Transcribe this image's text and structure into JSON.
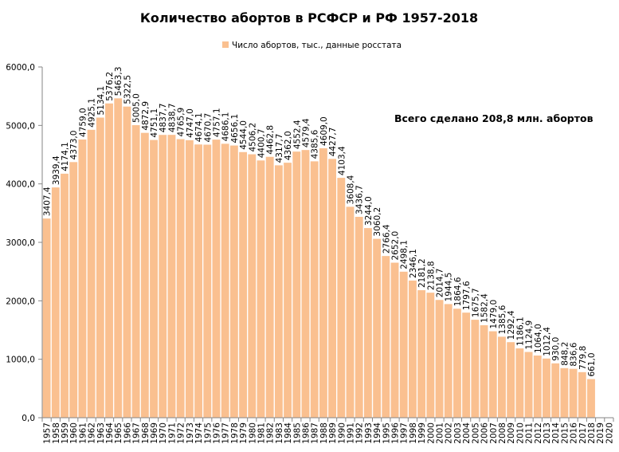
{
  "chart_data": {
    "type": "bar",
    "title": "Количество абортов  в РСФСР  и РФ 1957-2018",
    "legend": {
      "label": "Число абортов, тыс., данные росстата",
      "placement": "top"
    },
    "annotation": "Всего сделано 208,8 млн.  абортов",
    "bar_color": "#FAC090",
    "xlabel": "",
    "ylabel": "",
    "ylim": [
      0,
      6000
    ],
    "y_ticks": [
      "0,0",
      "1000,0",
      "2000,0",
      "3000,0",
      "4000,0",
      "5000,0",
      "6000,0"
    ],
    "categories": [
      "1957",
      "1958",
      "1959",
      "1960",
      "1961",
      "1962",
      "1963",
      "1964",
      "1965",
      "1966",
      "1967",
      "1968",
      "1969",
      "1970",
      "1971",
      "1972",
      "1973",
      "1974",
      "1975",
      "1976",
      "1977",
      "1978",
      "1979",
      "1980",
      "1981",
      "1982",
      "1983",
      "1984",
      "1985",
      "1986",
      "1987",
      "1988",
      "1989",
      "1990",
      "1991",
      "1992",
      "1993",
      "1994",
      "1995",
      "1996",
      "1997",
      "1998",
      "1999",
      "2000",
      "2001",
      "2002",
      "2003",
      "2004",
      "2005",
      "2006",
      "2007",
      "2008",
      "2009",
      "2010",
      "2011",
      "2012",
      "2013",
      "2014",
      "2015",
      "2016",
      "2017",
      "2018",
      "2019",
      "2020"
    ],
    "values": [
      3407.4,
      3939.4,
      4174.1,
      4373.0,
      4759.0,
      4925.1,
      5134.1,
      5376.2,
      5463.3,
      5322.5,
      5005.0,
      4872.9,
      4751.1,
      4837.7,
      4838.7,
      4765.9,
      4747.0,
      4674.1,
      4670.7,
      4757.1,
      4686.1,
      4656.1,
      4544.0,
      4506.2,
      4400.7,
      4462.8,
      4317.7,
      4362.0,
      4552.4,
      4579.4,
      4385.6,
      4609.0,
      4427.7,
      4103.4,
      3608.4,
      3436.7,
      3244.0,
      3060.2,
      2766.4,
      2652.0,
      2498.1,
      2346.1,
      2181.2,
      2138.8,
      2014.7,
      1944.5,
      1864.6,
      1797.6,
      1675.7,
      1582.4,
      1479.0,
      1385.6,
      1292.4,
      1186.1,
      1124.9,
      1064.0,
      1012.4,
      930.0,
      848.2,
      836.6,
      779.8,
      661.0,
      null,
      null
    ],
    "grid": false
  }
}
